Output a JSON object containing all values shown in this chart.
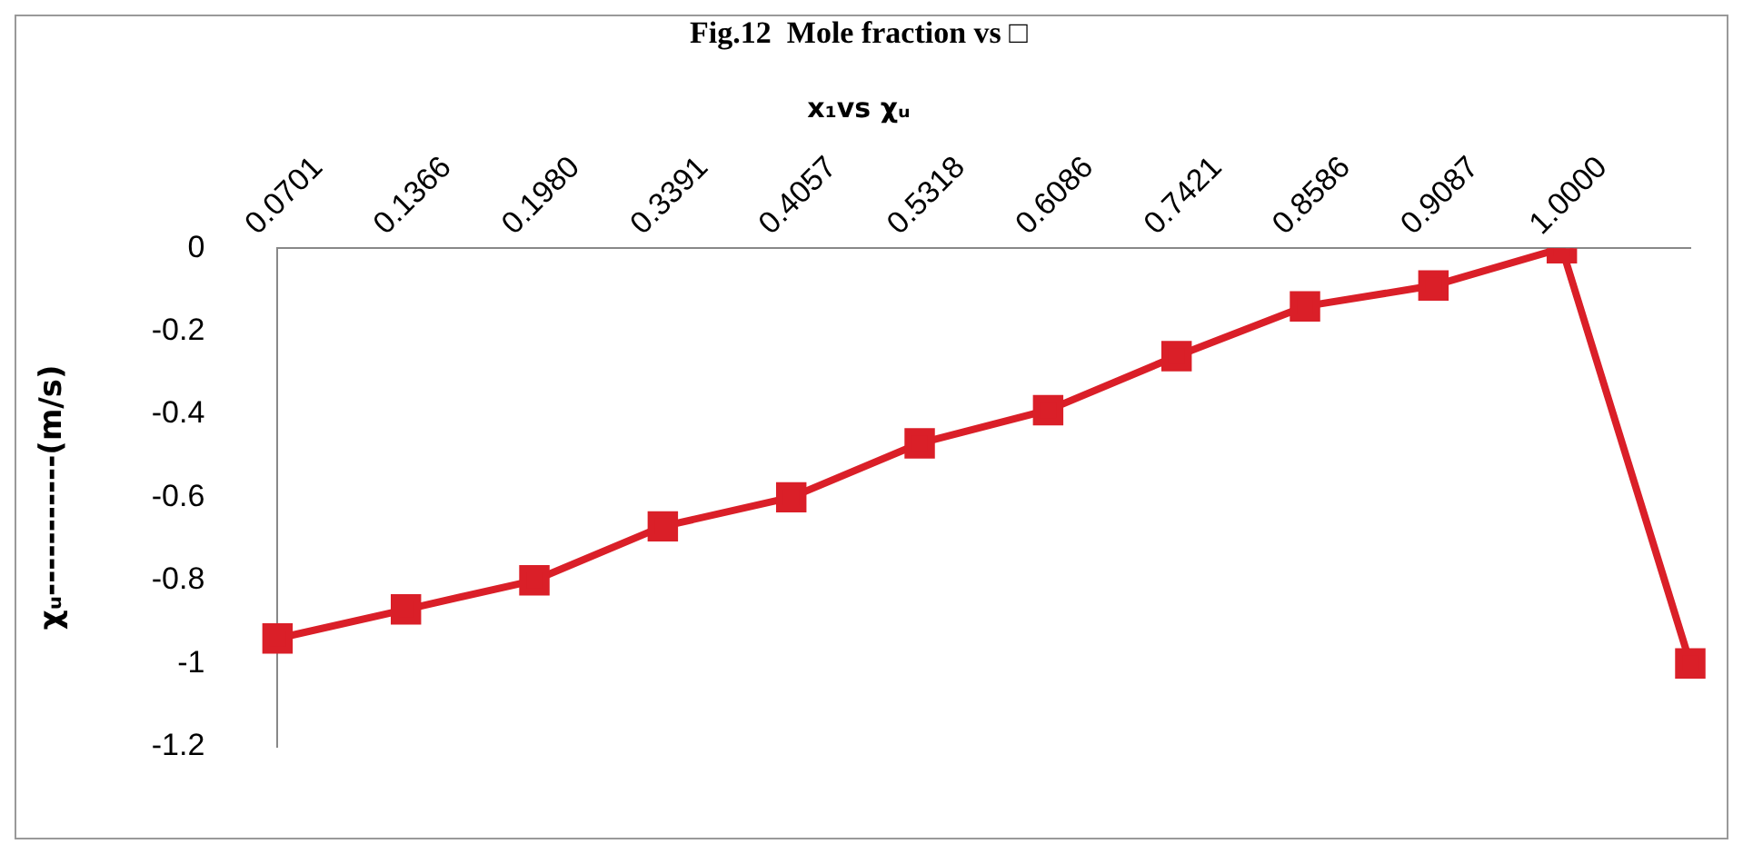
{
  "chart_data": {
    "type": "line",
    "title": "Fig.12  Mole fraction vs □",
    "subtitle": "x₁vs χᵤ",
    "ylabel": "χᵤ-----------(m/s)",
    "categories": [
      "0.0701",
      "0.1366",
      "0.1980",
      "0.3391",
      "0.4057",
      "0.5318",
      "0.6086",
      "0.7421",
      "0.8586",
      "0.9087",
      "1.0000",
      null
    ],
    "series": [
      {
        "color": "#da1f28",
        "values": [
          -0.94,
          -0.87,
          -0.8,
          -0.67,
          -0.6,
          -0.47,
          -0.39,
          -0.26,
          -0.14,
          -0.09,
          0,
          -1.0
        ]
      }
    ],
    "ylim": [
      -1.2,
      0
    ],
    "yticks": [
      0,
      -0.2,
      -0.4,
      -0.6,
      -0.8,
      -1,
      -1.2
    ],
    "grid": false,
    "legend": false,
    "marker": "square",
    "line_style": "solid"
  }
}
